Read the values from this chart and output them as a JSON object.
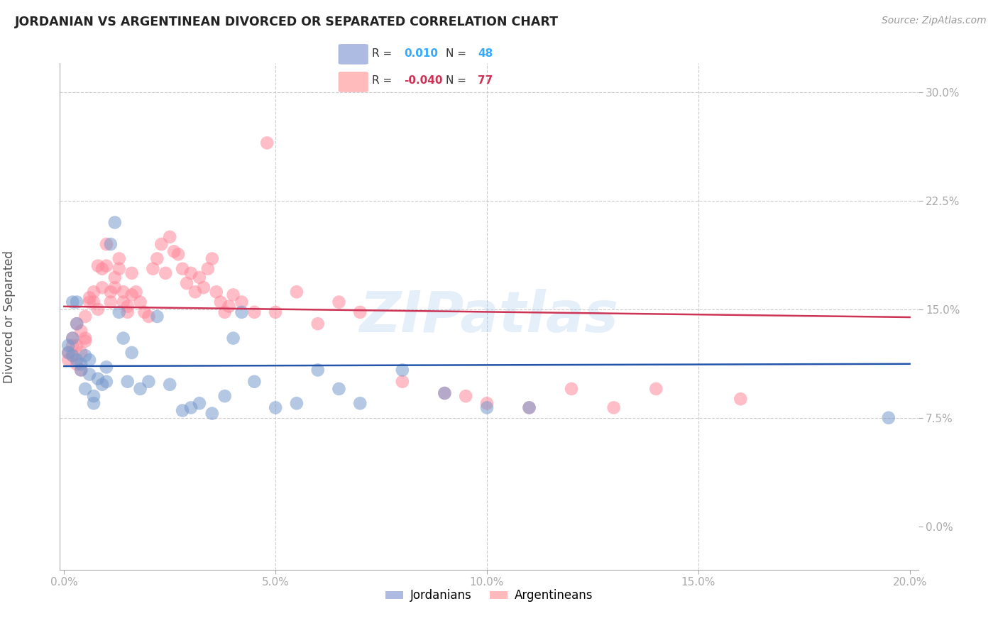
{
  "title": "JORDANIAN VS ARGENTINEAN DIVORCED OR SEPARATED CORRELATION CHART",
  "source": "Source: ZipAtlas.com",
  "ylabel": "Divorced or Separated",
  "blue_color": "#99aadd",
  "pink_color": "#ffaaaa",
  "blue_scatter_color": "#7799cc",
  "pink_scatter_color": "#ff8899",
  "blue_line_color": "#2255aa",
  "pink_line_color": "#cc3355",
  "watermark": "ZIPatlas",
  "R_blue": 0.01,
  "N_blue": 48,
  "R_pink": -0.04,
  "N_pink": 77,
  "xlim": [
    0.0,
    0.2
  ],
  "ylim": [
    -0.03,
    0.32
  ],
  "xticks": [
    0.0,
    0.05,
    0.1,
    0.15,
    0.2
  ],
  "yticks": [
    0.0,
    0.075,
    0.15,
    0.225,
    0.3
  ],
  "xtick_labels": [
    "0.0%",
    "5.0%",
    "10.0%",
    "15.0%",
    "20.0%"
  ],
  "ytick_labels": [
    "0.0%",
    "7.5%",
    "15.0%",
    "22.5%",
    "30.0%"
  ],
  "blue_x": [
    0.001,
    0.001,
    0.002,
    0.002,
    0.002,
    0.003,
    0.003,
    0.003,
    0.004,
    0.004,
    0.005,
    0.005,
    0.006,
    0.006,
    0.007,
    0.007,
    0.008,
    0.009,
    0.01,
    0.01,
    0.011,
    0.012,
    0.013,
    0.014,
    0.015,
    0.016,
    0.018,
    0.02,
    0.022,
    0.025,
    0.028,
    0.03,
    0.032,
    0.035,
    0.038,
    0.04,
    0.042,
    0.045,
    0.05,
    0.055,
    0.06,
    0.065,
    0.07,
    0.08,
    0.09,
    0.1,
    0.11,
    0.195
  ],
  "blue_y": [
    0.12,
    0.125,
    0.118,
    0.13,
    0.155,
    0.115,
    0.14,
    0.155,
    0.108,
    0.112,
    0.118,
    0.095,
    0.105,
    0.115,
    0.09,
    0.085,
    0.102,
    0.098,
    0.1,
    0.11,
    0.195,
    0.21,
    0.148,
    0.13,
    0.1,
    0.12,
    0.095,
    0.1,
    0.145,
    0.098,
    0.08,
    0.082,
    0.085,
    0.078,
    0.09,
    0.13,
    0.148,
    0.1,
    0.082,
    0.085,
    0.108,
    0.095,
    0.085,
    0.108,
    0.092,
    0.082,
    0.082,
    0.075
  ],
  "pink_x": [
    0.001,
    0.001,
    0.002,
    0.002,
    0.002,
    0.003,
    0.003,
    0.003,
    0.004,
    0.004,
    0.004,
    0.005,
    0.005,
    0.005,
    0.006,
    0.006,
    0.007,
    0.007,
    0.008,
    0.008,
    0.009,
    0.009,
    0.01,
    0.01,
    0.011,
    0.011,
    0.012,
    0.012,
    0.013,
    0.013,
    0.014,
    0.014,
    0.015,
    0.015,
    0.016,
    0.016,
    0.017,
    0.018,
    0.019,
    0.02,
    0.021,
    0.022,
    0.023,
    0.024,
    0.025,
    0.026,
    0.027,
    0.028,
    0.029,
    0.03,
    0.031,
    0.032,
    0.033,
    0.034,
    0.035,
    0.036,
    0.037,
    0.038,
    0.039,
    0.04,
    0.042,
    0.045,
    0.048,
    0.05,
    0.055,
    0.06,
    0.065,
    0.07,
    0.08,
    0.09,
    0.095,
    0.1,
    0.11,
    0.12,
    0.13,
    0.14,
    0.16
  ],
  "pink_y": [
    0.12,
    0.115,
    0.125,
    0.13,
    0.118,
    0.14,
    0.125,
    0.112,
    0.12,
    0.108,
    0.135,
    0.13,
    0.128,
    0.145,
    0.155,
    0.158,
    0.162,
    0.155,
    0.15,
    0.18,
    0.178,
    0.165,
    0.195,
    0.18,
    0.162,
    0.155,
    0.172,
    0.165,
    0.178,
    0.185,
    0.162,
    0.155,
    0.148,
    0.152,
    0.16,
    0.175,
    0.162,
    0.155,
    0.148,
    0.145,
    0.178,
    0.185,
    0.195,
    0.175,
    0.2,
    0.19,
    0.188,
    0.178,
    0.168,
    0.175,
    0.162,
    0.172,
    0.165,
    0.178,
    0.185,
    0.162,
    0.155,
    0.148,
    0.152,
    0.16,
    0.155,
    0.148,
    0.265,
    0.148,
    0.162,
    0.14,
    0.155,
    0.148,
    0.1,
    0.092,
    0.09,
    0.085,
    0.082,
    0.095,
    0.082,
    0.095,
    0.088
  ]
}
